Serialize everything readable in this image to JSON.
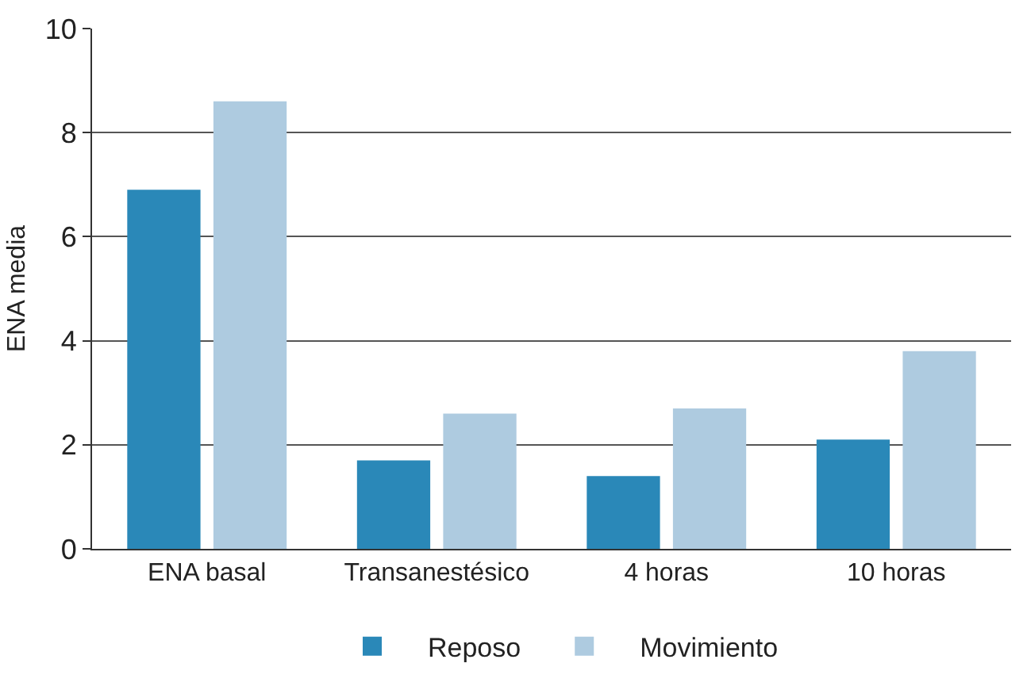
{
  "chart_data": {
    "type": "bar",
    "ylabel": "ENA media",
    "categories": [
      "ENA basal",
      "Transanestésico",
      "4 horas",
      "10 horas"
    ],
    "series": [
      {
        "name": "Reposo",
        "color": "#2a88b8",
        "values": [
          6.9,
          1.7,
          1.4,
          2.1
        ]
      },
      {
        "name": "Movimiento",
        "color": "#aecbe0",
        "values": [
          8.6,
          2.6,
          2.7,
          3.8
        ]
      }
    ],
    "ylim": [
      0,
      10
    ],
    "yticks": [
      0,
      2,
      4,
      6,
      8,
      10
    ],
    "grid": "y",
    "legend": "bottom"
  }
}
